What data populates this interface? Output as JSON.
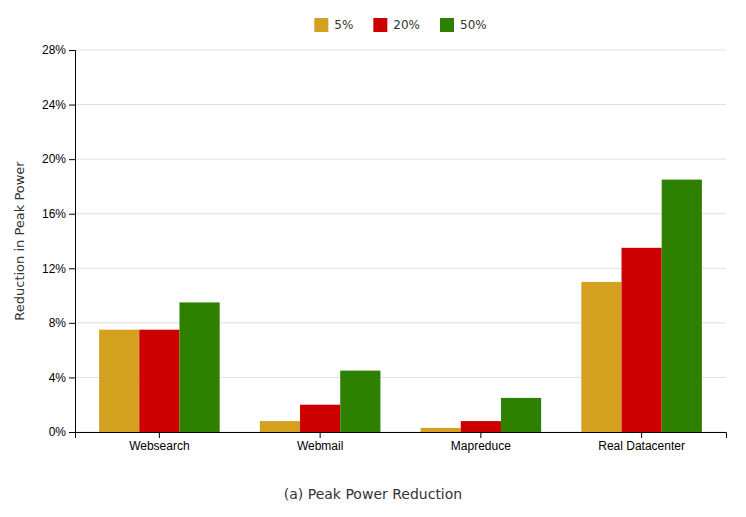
{
  "chart_data": {
    "type": "bar",
    "title": "(a)  Peak Power Reduction",
    "ylabel": "Reduction in Peak Power",
    "categories": [
      "Websearch",
      "Webmail",
      "Mapreduce",
      "Real Datacenter"
    ],
    "series": [
      {
        "name": "5%",
        "color": "#D4A020",
        "values": [
          7.5,
          0.8,
          0.3,
          11.0
        ]
      },
      {
        "name": "20%",
        "color": "#CC0000",
        "values": [
          7.5,
          2.0,
          0.8,
          13.5
        ]
      },
      {
        "name": "50%",
        "color": "#2E8000",
        "values": [
          9.5,
          4.5,
          2.5,
          18.5
        ]
      }
    ],
    "ylim": [
      0,
      28
    ],
    "yticks": [
      {
        "value": 0,
        "label": "0%"
      },
      {
        "value": 4,
        "label": "4%"
      },
      {
        "value": 8,
        "label": "8%"
      },
      {
        "value": 12,
        "label": "12%"
      },
      {
        "value": 16,
        "label": "16%"
      },
      {
        "value": 20,
        "label": "20%"
      },
      {
        "value": 24,
        "label": "24%"
      },
      {
        "value": 28,
        "label": "28%"
      }
    ],
    "grid": true,
    "legend": "top"
  }
}
